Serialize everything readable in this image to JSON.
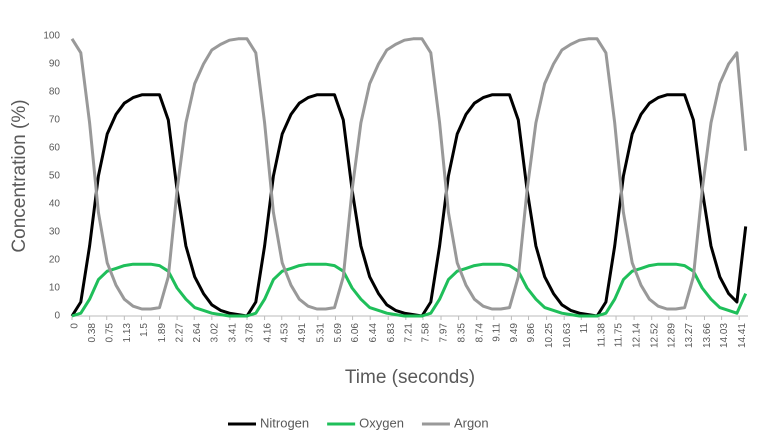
{
  "chart_data": {
    "type": "line",
    "xlabel": "Time (seconds)",
    "ylabel": "Concentration (%)",
    "x": [
      0,
      0.19,
      0.38,
      0.57,
      0.76,
      0.95,
      1.13,
      1.32,
      1.51,
      1.7,
      1.89,
      2.08,
      2.27,
      2.46,
      2.65,
      2.84,
      3.02,
      3.21,
      3.4,
      3.59,
      3.78,
      3.97,
      4.16,
      4.35,
      4.54,
      4.73,
      4.91,
      5.1,
      5.29,
      5.48,
      5.67,
      5.86,
      6.05,
      6.24,
      6.43,
      6.62,
      6.8,
      6.99,
      7.18,
      7.37,
      7.56,
      7.75,
      7.94,
      8.13,
      8.32,
      8.51,
      8.69,
      8.88,
      9.07,
      9.26,
      9.45,
      9.64,
      9.83,
      10.02,
      10.21,
      10.4,
      10.58,
      10.77,
      10.96,
      11.15,
      11.34,
      11.53,
      11.72,
      11.91,
      12.1,
      12.29,
      12.47,
      12.66,
      12.85,
      13.04,
      13.23,
      13.42,
      13.61,
      13.8,
      13.99,
      14.18,
      14.36,
      14.55
    ],
    "series": [
      {
        "name": "Nitrogen",
        "color": "#000000",
        "values": [
          0,
          5,
          25,
          50,
          65,
          72,
          76,
          78,
          79,
          79,
          79,
          70,
          45,
          25,
          14,
          8,
          4,
          2,
          1,
          0.5,
          0,
          5,
          25,
          50,
          65,
          72,
          76,
          78,
          79,
          79,
          79,
          70,
          45,
          25,
          14,
          8,
          4,
          2,
          1,
          0.5,
          0,
          5,
          25,
          50,
          65,
          72,
          76,
          78,
          79,
          79,
          79,
          70,
          45,
          25,
          14,
          8,
          4,
          2,
          1,
          0.5,
          0,
          5,
          25,
          50,
          65,
          72,
          76,
          78,
          79,
          79,
          79,
          70,
          45,
          25,
          14,
          8,
          5,
          32
        ]
      },
      {
        "name": "Oxygen",
        "color": "#1fbf5a",
        "values": [
          0,
          1,
          6,
          13,
          16,
          17,
          18,
          18.5,
          18.5,
          18.5,
          18,
          16,
          10,
          6,
          3,
          2,
          1,
          0.5,
          0,
          0,
          0,
          1,
          6,
          13,
          16,
          17,
          18,
          18.5,
          18.5,
          18.5,
          18,
          16,
          10,
          6,
          3,
          2,
          1,
          0.5,
          0,
          0,
          0,
          1,
          6,
          13,
          16,
          17,
          18,
          18.5,
          18.5,
          18.5,
          18,
          16,
          10,
          6,
          3,
          2,
          1,
          0.5,
          0,
          0,
          0,
          1,
          6,
          13,
          16,
          17,
          18,
          18.5,
          18.5,
          18.5,
          18,
          16,
          10,
          6,
          3,
          2,
          1,
          8
        ]
      },
      {
        "name": "Argon",
        "color": "#999999",
        "values": [
          99,
          94,
          69,
          37,
          19,
          11,
          6,
          3.5,
          2.5,
          2.5,
          3,
          14,
          45,
          69,
          83,
          90,
          95,
          97,
          98.5,
          99,
          99,
          94,
          69,
          37,
          19,
          11,
          6,
          3.5,
          2.5,
          2.5,
          3,
          14,
          45,
          69,
          83,
          90,
          95,
          97,
          98.5,
          99,
          99,
          94,
          69,
          37,
          19,
          11,
          6,
          3.5,
          2.5,
          2.5,
          3,
          14,
          45,
          69,
          83,
          90,
          95,
          97,
          98.5,
          99,
          99,
          94,
          69,
          37,
          19,
          11,
          6,
          3.5,
          2.5,
          2.5,
          3,
          14,
          45,
          69,
          83,
          90,
          94,
          59
        ]
      }
    ],
    "xlim": [
      0,
      14.6
    ],
    "xticks": [
      0,
      0.38,
      0.75,
      1.13,
      1.5,
      1.89,
      2.27,
      2.64,
      3.02,
      3.41,
      3.78,
      4.16,
      4.53,
      4.91,
      5.31,
      5.69,
      6.06,
      6.44,
      6.83,
      7.21,
      7.58,
      7.97,
      8.35,
      8.74,
      9.11,
      9.49,
      9.86,
      10.25,
      10.63,
      11,
      11.38,
      11.75,
      12.14,
      12.52,
      12.89,
      13.27,
      13.66,
      14.03,
      14.41
    ],
    "ylim": [
      0,
      100
    ],
    "yticks": [
      0,
      10,
      20,
      30,
      40,
      50,
      60,
      70,
      80,
      90,
      100
    ],
    "grid": false,
    "legend": "bottom"
  }
}
